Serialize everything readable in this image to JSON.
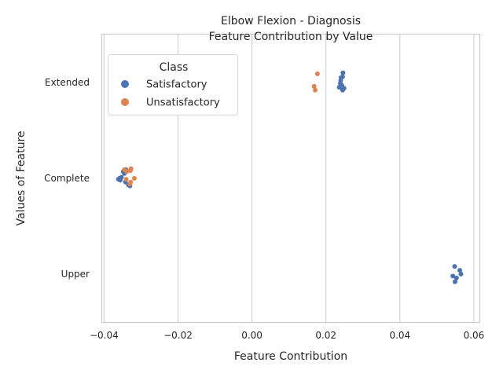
{
  "chart_data": {
    "type": "scatter",
    "title_line1": "Elbow Flexion - Diagnosis",
    "title_line2": "Feature Contribution by Value",
    "xlabel": "Feature Contribution",
    "ylabel": "Values of Feature",
    "xlim": [
      -0.0405,
      0.0615
    ],
    "x_ticks": [
      -0.04,
      -0.02,
      0.0,
      0.02,
      0.04,
      0.06
    ],
    "x_tick_labels": [
      "−0.04",
      "−0.02",
      "0.00",
      "0.02",
      "0.04",
      "0.06"
    ],
    "categories": [
      "Extended",
      "Complete",
      "Upper"
    ],
    "grid": true,
    "legend": {
      "title": "Class",
      "placement": "upper-left",
      "entries": [
        {
          "name": "Satisfactory",
          "color": "#4c72b0"
        },
        {
          "name": "Unsatisfactory",
          "color": "#dd8452"
        }
      ]
    },
    "series": [
      {
        "name": "Satisfactory",
        "color": "#4c72b0",
        "points": [
          {
            "category": "Extended",
            "x": 0.0246,
            "jitter": -0.1
          },
          {
            "category": "Extended",
            "x": 0.0245,
            "jitter": -0.06
          },
          {
            "category": "Extended",
            "x": 0.0241,
            "jitter": -0.05
          },
          {
            "category": "Extended",
            "x": 0.024,
            "jitter": -0.02
          },
          {
            "category": "Extended",
            "x": 0.0239,
            "jitter": 0.01
          },
          {
            "category": "Extended",
            "x": 0.0243,
            "jitter": 0.03
          },
          {
            "category": "Extended",
            "x": 0.0236,
            "jitter": 0.05
          },
          {
            "category": "Extended",
            "x": 0.0249,
            "jitter": 0.06
          },
          {
            "category": "Extended",
            "x": 0.0245,
            "jitter": 0.08
          },
          {
            "category": "Complete",
            "x": -0.0348,
            "jitter": -0.07
          },
          {
            "category": "Complete",
            "x": -0.0341,
            "jitter": -0.09
          },
          {
            "category": "Complete",
            "x": -0.0345,
            "jitter": -0.05
          },
          {
            "category": "Complete",
            "x": -0.0353,
            "jitter": -0.01
          },
          {
            "category": "Complete",
            "x": -0.0358,
            "jitter": 0.0
          },
          {
            "category": "Complete",
            "x": -0.0361,
            "jitter": 0.01
          },
          {
            "category": "Complete",
            "x": -0.0356,
            "jitter": 0.02
          },
          {
            "category": "Complete",
            "x": -0.0342,
            "jitter": 0.04
          },
          {
            "category": "Complete",
            "x": -0.0334,
            "jitter": 0.07
          },
          {
            "category": "Complete",
            "x": -0.033,
            "jitter": 0.08
          },
          {
            "category": "Upper",
            "x": 0.0548,
            "jitter": -0.08
          },
          {
            "category": "Upper",
            "x": 0.0562,
            "jitter": -0.04
          },
          {
            "category": "Upper",
            "x": 0.0565,
            "jitter": 0.0
          },
          {
            "category": "Upper",
            "x": 0.0543,
            "jitter": 0.02
          },
          {
            "category": "Upper",
            "x": 0.0553,
            "jitter": 0.04
          },
          {
            "category": "Upper",
            "x": 0.0549,
            "jitter": 0.08
          }
        ]
      },
      {
        "name": "Unsatisfactory",
        "color": "#dd8452",
        "points": [
          {
            "category": "Extended",
            "x": 0.0177,
            "jitter": -0.09
          },
          {
            "category": "Extended",
            "x": 0.0168,
            "jitter": 0.04
          },
          {
            "category": "Extended",
            "x": 0.0171,
            "jitter": 0.08
          },
          {
            "category": "Complete",
            "x": -0.0327,
            "jitter": -0.1
          },
          {
            "category": "Complete",
            "x": -0.0329,
            "jitter": -0.08
          },
          {
            "category": "Complete",
            "x": -0.0339,
            "jitter": -0.07
          },
          {
            "category": "Complete",
            "x": -0.0345,
            "jitter": -0.09
          },
          {
            "category": "Complete",
            "x": -0.0318,
            "jitter": 0.0
          },
          {
            "category": "Complete",
            "x": -0.034,
            "jitter": 0.01
          },
          {
            "category": "Complete",
            "x": -0.0328,
            "jitter": 0.04
          },
          {
            "category": "Complete",
            "x": -0.033,
            "jitter": 0.06
          }
        ]
      }
    ]
  }
}
